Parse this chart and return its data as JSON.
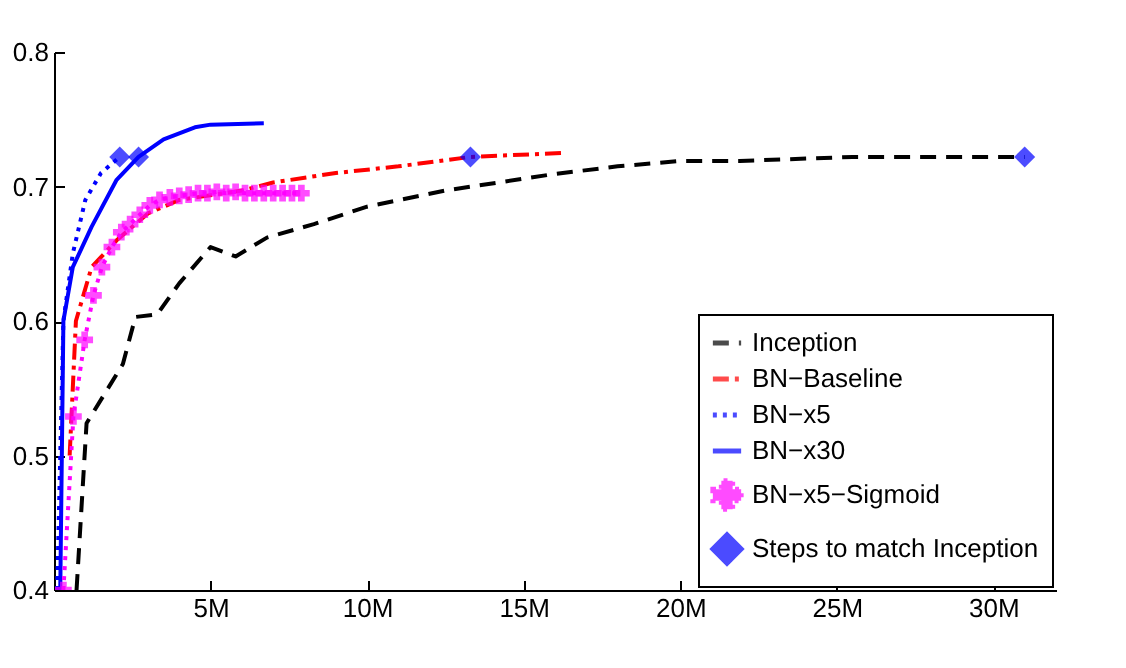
{
  "chart_data": {
    "type": "line",
    "xlim": [
      0,
      32
    ],
    "ylim": [
      0.4,
      0.8
    ],
    "xticks": [
      {
        "value": 5,
        "label": "5M"
      },
      {
        "value": 10,
        "label": "10M"
      },
      {
        "value": 15,
        "label": "15M"
      },
      {
        "value": 20,
        "label": "20M"
      },
      {
        "value": 25,
        "label": "25M"
      },
      {
        "value": 30,
        "label": "30M"
      }
    ],
    "yticks": [
      0.4,
      0.5,
      0.6,
      0.7,
      0.8
    ],
    "grid": false,
    "legend": "bottom right",
    "series": [
      {
        "name": "Inception",
        "color": "#000000",
        "line_style": "dashed",
        "marker": "none",
        "x": [
          0.72,
          1.04,
          2.2,
          2.6,
          3.3,
          4.0,
          5.0,
          5.8,
          6.8,
          8.3,
          10,
          12.5,
          15.9,
          18,
          20,
          21.9,
          25.5,
          28,
          31
        ],
        "values": [
          0.4,
          0.524,
          0.568,
          0.603,
          0.605,
          0.628,
          0.655,
          0.648,
          0.662,
          0.672,
          0.685,
          0.697,
          0.709,
          0.715,
          0.719,
          0.719,
          0.722,
          0.722,
          0.722
        ]
      },
      {
        "name": "BN−Baseline",
        "color": "#ff0000",
        "line_style": "dashdot",
        "marker": "none",
        "x": [
          0.5,
          0.7,
          1.2,
          2,
          3,
          4,
          6,
          7,
          9,
          11,
          13.3,
          16.3
        ],
        "values": [
          0.5,
          0.6,
          0.64,
          0.66,
          0.68,
          0.69,
          0.697,
          0.703,
          0.71,
          0.715,
          0.722,
          0.725
        ]
      },
      {
        "name": "BN−x5",
        "color": "#0000ff",
        "line_style": "dotted",
        "marker": "none",
        "x": [
          0.1,
          0.3,
          0.6,
          1,
          1.5,
          2.1
        ],
        "values": [
          0.4,
          0.6,
          0.65,
          0.69,
          0.71,
          0.722
        ]
      },
      {
        "name": "BN−x30",
        "color": "#0000ff",
        "line_style": "solid",
        "marker": "none",
        "x": [
          0.2,
          0.3,
          0.6,
          1.2,
          2,
          2.7,
          3.5,
          4.5,
          5,
          6.7
        ],
        "values": [
          0.4,
          0.6,
          0.64,
          0.67,
          0.705,
          0.722,
          0.735,
          0.744,
          0.746,
          0.747
        ]
      },
      {
        "name": "BN−x5−Sigmoid",
        "color": "#ff00ff",
        "line_style": "dotted",
        "marker": "cross",
        "x": [
          0.3,
          0.62,
          0.98,
          1.26,
          1.53,
          1.85,
          2.15,
          2.43,
          2.74,
          3.06,
          3.37,
          3.7,
          4.0,
          4.3,
          4.6,
          4.9,
          5.2,
          5.5,
          5.8,
          6.1,
          6.4,
          6.7,
          7.0,
          7.3,
          7.6,
          7.9
        ],
        "values": [
          0.4,
          0.529,
          0.586,
          0.619,
          0.64,
          0.655,
          0.666,
          0.672,
          0.679,
          0.686,
          0.69,
          0.692,
          0.693,
          0.694,
          0.695,
          0.695,
          0.696,
          0.695,
          0.696,
          0.695,
          0.695,
          0.695,
          0.695,
          0.695,
          0.695,
          0.695
        ]
      },
      {
        "name": "Steps to match Inception",
        "type": "scatter",
        "color": "#0000ff",
        "marker": "diamond",
        "x": [
          2.1,
          2.7,
          13.3,
          31
        ],
        "values": [
          0.722,
          0.722,
          0.722,
          0.722
        ]
      }
    ]
  }
}
